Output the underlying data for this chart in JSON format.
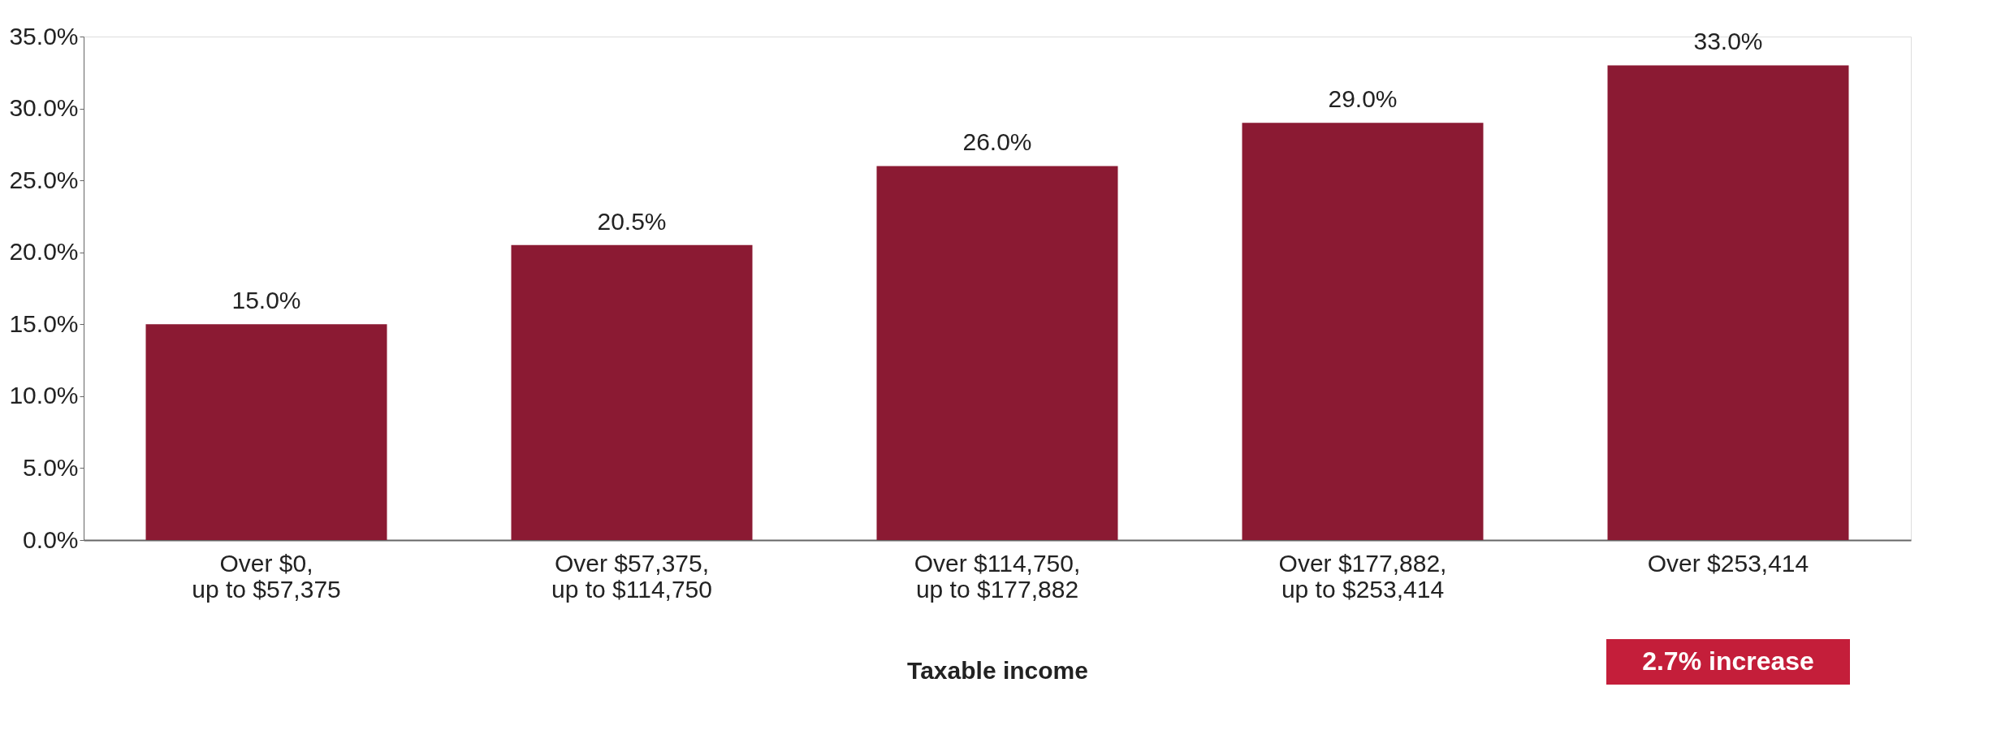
{
  "chart_data": {
    "type": "bar",
    "xlabel": "Taxable income",
    "categories": [
      "Over $0,\nup to $57,375",
      "Over $57,375,\nup to $114,750",
      "Over $114,750,\nup to $177,882",
      "Over $177,882,\nup to $253,414",
      "Over $253,414"
    ],
    "values": [
      15.0,
      20.5,
      26.0,
      29.0,
      33.0
    ],
    "value_labels": [
      "15.0%",
      "20.5%",
      "26.0%",
      "29.0%",
      "33.0%"
    ],
    "color": "#8b1a33",
    "ylim": [
      0,
      35
    ],
    "yticks": [
      {
        "value": 0,
        "label": "0.0%"
      },
      {
        "value": 5,
        "label": "5.0%"
      },
      {
        "value": 10,
        "label": "10.0%"
      },
      {
        "value": 15,
        "label": "15.0%"
      },
      {
        "value": 20,
        "label": "20.0%"
      },
      {
        "value": 25,
        "label": "25.0%"
      },
      {
        "value": 30,
        "label": "30.0%"
      },
      {
        "value": 35,
        "label": "35.0%"
      }
    ],
    "grid": false,
    "annotations": [
      "2.7% increase"
    ]
  }
}
